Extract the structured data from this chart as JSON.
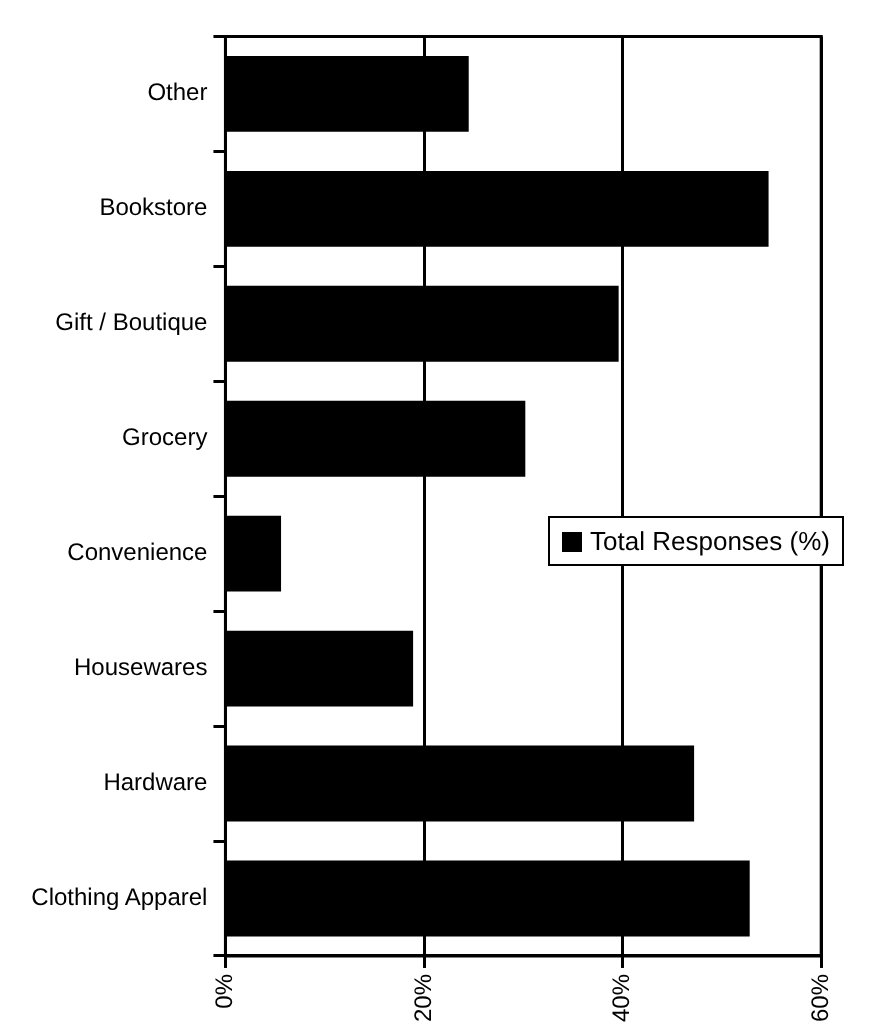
{
  "chart_data": {
    "type": "bar",
    "orientation": "horizontal",
    "categories": [
      "Other",
      "Bookstore",
      "Gift / Boutique",
      "Grocery",
      "Convenience",
      "Housewares",
      "Hardware",
      "Clothing Apparel"
    ],
    "series": [
      {
        "name": "Total Responses (%)",
        "color": "#000000",
        "values": [
          24.5,
          54.7,
          39.6,
          30.2,
          5.6,
          18.9,
          47.2,
          52.8
        ]
      }
    ],
    "xlim": [
      0,
      60
    ],
    "xticks": [
      {
        "value": 0,
        "label": "0%"
      },
      {
        "value": 20,
        "label": "20%"
      },
      {
        "value": 40,
        "label": "40%"
      },
      {
        "value": 60,
        "label": "60%"
      }
    ],
    "grid": "x",
    "legend": "right"
  }
}
